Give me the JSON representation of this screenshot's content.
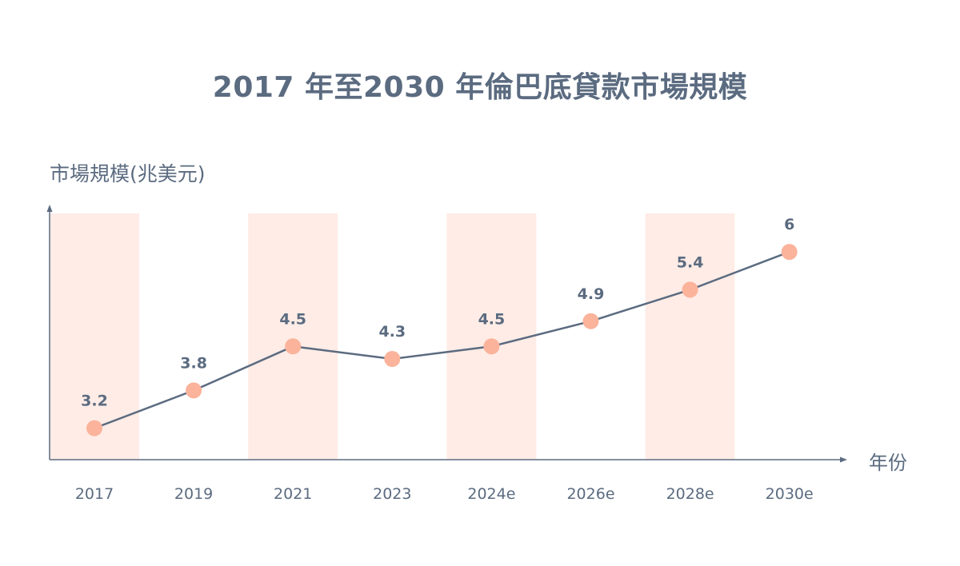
{
  "chart_data": {
    "type": "line",
    "title": "2017 年至2030 年倫巴底貸款市場規模",
    "ylabel": "市場規模(兆美元)",
    "xlabel": "年份",
    "categories": [
      "2017",
      "2019",
      "2021",
      "2023",
      "2024e",
      "2026e",
      "2028e",
      "2030e"
    ],
    "values": [
      3.2,
      3.8,
      4.5,
      4.3,
      4.5,
      4.9,
      5.4,
      6
    ],
    "value_labels": [
      "3.2",
      "3.8",
      "4.5",
      "4.3",
      "4.5",
      "4.9",
      "5.4",
      "6"
    ],
    "ylim": [
      2.7,
      6.7
    ],
    "grid": false,
    "legend": "none",
    "highlighted_categories": [
      "2017",
      "2021",
      "2024e",
      "2028e"
    ],
    "colors": {
      "line": "#5b6b80",
      "marker": "#fbb39b",
      "band": "#ffece6",
      "axis": "#5b6b80",
      "text": "#5b6b80"
    }
  }
}
